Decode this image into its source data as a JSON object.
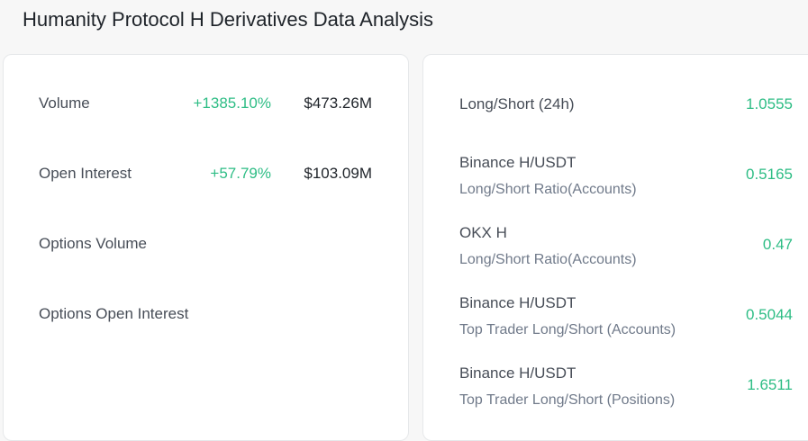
{
  "page": {
    "title": "Humanity Protocol H Derivatives Data Analysis"
  },
  "colors": {
    "positive": "#2ebd85",
    "text_primary": "#1e2329",
    "text_secondary": "#707a8a"
  },
  "left_panel": {
    "rows": [
      {
        "label": "Volume",
        "change": "+1385.10%",
        "value": "$473.26M"
      },
      {
        "label": "Open Interest",
        "change": "+57.79%",
        "value": "$103.09M"
      },
      {
        "label": "Options Volume",
        "change": "",
        "value": ""
      },
      {
        "label": "Options Open Interest",
        "change": "",
        "value": ""
      }
    ]
  },
  "right_panel": {
    "rows": [
      {
        "title": "Long/Short (24h)",
        "subtitle": "",
        "value": "1.0555"
      },
      {
        "title": "Binance H/USDT",
        "subtitle": "Long/Short Ratio(Accounts)",
        "value": "0.5165"
      },
      {
        "title": "OKX H",
        "subtitle": "Long/Short Ratio(Accounts)",
        "value": "0.47"
      },
      {
        "title": "Binance H/USDT",
        "subtitle": "Top Trader Long/Short (Accounts)",
        "value": "0.5044"
      },
      {
        "title": "Binance H/USDT",
        "subtitle": "Top Trader Long/Short (Positions)",
        "value": "1.6511"
      }
    ]
  }
}
